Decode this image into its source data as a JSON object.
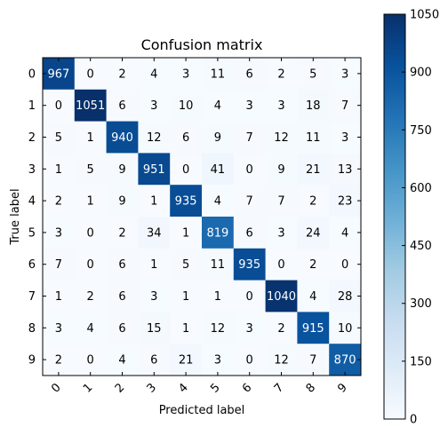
{
  "chart_data": {
    "type": "heatmap",
    "title": "Confusion matrix",
    "xlabel": "Predicted label",
    "ylabel": "True label",
    "x_categories": [
      "0",
      "1",
      "2",
      "3",
      "4",
      "5",
      "6",
      "7",
      "8",
      "9"
    ],
    "y_categories": [
      "0",
      "1",
      "2",
      "3",
      "4",
      "5",
      "6",
      "7",
      "8",
      "9"
    ],
    "values": [
      [
        967,
        0,
        2,
        4,
        3,
        11,
        6,
        2,
        5,
        3
      ],
      [
        0,
        1051,
        6,
        3,
        10,
        4,
        3,
        3,
        18,
        7
      ],
      [
        5,
        1,
        940,
        12,
        6,
        9,
        7,
        12,
        11,
        3
      ],
      [
        1,
        5,
        9,
        951,
        0,
        41,
        0,
        9,
        21,
        13
      ],
      [
        2,
        1,
        9,
        1,
        935,
        4,
        7,
        7,
        2,
        23
      ],
      [
        3,
        0,
        2,
        34,
        1,
        819,
        6,
        3,
        24,
        4
      ],
      [
        7,
        0,
        6,
        1,
        5,
        11,
        935,
        0,
        2,
        0
      ],
      [
        1,
        2,
        6,
        3,
        1,
        1,
        0,
        1040,
        4,
        28
      ],
      [
        3,
        4,
        6,
        15,
        1,
        12,
        3,
        2,
        915,
        10
      ],
      [
        2,
        0,
        4,
        6,
        21,
        3,
        0,
        12,
        7,
        870
      ]
    ],
    "colorbar": {
      "min": 0,
      "max": 1050,
      "ticks": [
        0,
        150,
        300,
        450,
        600,
        750,
        900,
        1050
      ],
      "colormap": "Blues",
      "low_color": "#f7fbff",
      "high_color": "#08306b"
    }
  }
}
